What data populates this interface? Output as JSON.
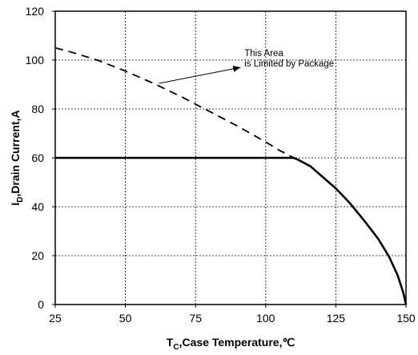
{
  "chart_data": {
    "type": "line",
    "xlabel": {
      "main": "T",
      "sub": "C",
      "rest": ",Case Temperature,℃"
    },
    "ylabel": {
      "main": "I",
      "sub": "D",
      "rest": ",Drain Current,A"
    },
    "xlim": [
      25,
      150
    ],
    "ylim": [
      0,
      120
    ],
    "x_ticks": [
      "25",
      "50",
      "75",
      "100",
      "125",
      "150"
    ],
    "y_ticks": [
      "0",
      "20",
      "40",
      "60",
      "80",
      "100",
      "120"
    ],
    "x_tick_values": [
      25,
      50,
      75,
      100,
      125,
      150
    ],
    "y_tick_values": [
      0,
      20,
      40,
      60,
      80,
      100,
      120
    ],
    "grid": true,
    "series": [
      {
        "style": "solid",
        "points": [
          [
            25,
            60
          ],
          [
            110,
            60
          ],
          [
            112,
            59
          ],
          [
            116,
            56.5
          ],
          [
            120,
            52.5
          ],
          [
            125,
            47.5
          ],
          [
            130,
            41.5
          ],
          [
            135,
            34.5
          ],
          [
            140,
            27
          ],
          [
            144,
            19.5
          ],
          [
            147,
            12
          ],
          [
            149,
            5
          ],
          [
            150,
            0
          ]
        ]
      },
      {
        "style": "dashed",
        "points": [
          [
            25,
            105
          ],
          [
            30,
            103.5
          ],
          [
            40,
            100
          ],
          [
            50,
            95.5
          ],
          [
            60,
            90.5
          ],
          [
            70,
            85
          ],
          [
            80,
            79
          ],
          [
            90,
            73
          ],
          [
            100,
            66.5
          ],
          [
            105,
            63
          ],
          [
            110,
            60
          ]
        ]
      }
    ],
    "annotations": [
      {
        "text_line1": "This Area",
        "text_line2": "is Limited by Package",
        "from": [
          62,
          90.5
        ],
        "to": [
          91,
          97
        ]
      }
    ]
  }
}
